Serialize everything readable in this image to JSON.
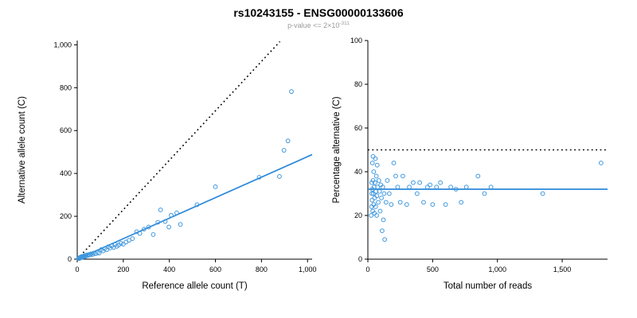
{
  "header": {
    "title": "rs10243155 - ENSG00000133606",
    "subtitle_main": "p-value <= 2×10",
    "subtitle_exponent": "-311"
  },
  "chart_data": [
    {
      "type": "scatter",
      "name": "alternative-vs-reference-count",
      "xlabel": "Reference allele count (T)",
      "ylabel": "Alternative allele count (C)",
      "xlim": [
        0,
        1020
      ],
      "ylim": [
        0,
        1020
      ],
      "grid": false,
      "xticks": {
        "values": [
          0,
          200,
          400,
          600,
          800,
          1000
        ],
        "labels": [
          "0",
          "200",
          "400",
          "600",
          "800",
          "1,000"
        ]
      },
      "yticks": {
        "values": [
          0,
          200,
          400,
          600,
          800,
          1000
        ],
        "labels": [
          "0",
          "200",
          "400",
          "600",
          "800",
          "1,000"
        ]
      },
      "point_color": "#3f97de",
      "lines": [
        {
          "name": "identity-line",
          "style": "dotted",
          "color": "#000000",
          "x": [
            0,
            880
          ],
          "y": [
            0,
            1015
          ]
        },
        {
          "name": "regression-line",
          "style": "solid",
          "color": "#2b87d8",
          "x": [
            0,
            1020
          ],
          "y": [
            0,
            488
          ]
        }
      ],
      "points": [
        [
          6,
          3
        ],
        [
          9,
          6
        ],
        [
          11,
          4
        ],
        [
          13,
          9
        ],
        [
          16,
          7
        ],
        [
          19,
          12
        ],
        [
          22,
          9
        ],
        [
          25,
          14
        ],
        [
          28,
          11
        ],
        [
          32,
          16
        ],
        [
          36,
          13
        ],
        [
          40,
          20
        ],
        [
          45,
          17
        ],
        [
          50,
          22
        ],
        [
          55,
          19
        ],
        [
          60,
          25
        ],
        [
          66,
          22
        ],
        [
          72,
          28
        ],
        [
          80,
          25
        ],
        [
          88,
          31
        ],
        [
          95,
          28
        ],
        [
          105,
          45
        ],
        [
          112,
          38
        ],
        [
          120,
          50
        ],
        [
          128,
          44
        ],
        [
          135,
          58
        ],
        [
          142,
          52
        ],
        [
          150,
          62
        ],
        [
          158,
          55
        ],
        [
          165,
          68
        ],
        [
          172,
          60
        ],
        [
          180,
          66
        ],
        [
          190,
          74
        ],
        [
          200,
          70
        ],
        [
          212,
          80
        ],
        [
          225,
          88
        ],
        [
          240,
          96
        ],
        [
          258,
          128
        ],
        [
          272,
          120
        ],
        [
          290,
          140
        ],
        [
          310,
          150
        ],
        [
          330,
          115
        ],
        [
          350,
          172
        ],
        [
          362,
          230
        ],
        [
          382,
          176
        ],
        [
          398,
          150
        ],
        [
          408,
          205
        ],
        [
          432,
          216
        ],
        [
          448,
          162
        ],
        [
          520,
          254
        ],
        [
          600,
          338
        ],
        [
          790,
          382
        ],
        [
          878,
          386
        ],
        [
          898,
          508
        ],
        [
          915,
          552
        ],
        [
          930,
          782
        ]
      ]
    },
    {
      "type": "scatter",
      "name": "percentage-vs-total-reads",
      "xlabel": "Total number of reads",
      "ylabel": "Percentage alternative (C)",
      "xlim": [
        0,
        1850
      ],
      "ylim": [
        0,
        100
      ],
      "grid": false,
      "xticks": {
        "values": [
          0,
          500,
          1000,
          1500
        ],
        "labels": [
          "0",
          "500",
          "1,000",
          "1,500"
        ]
      },
      "yticks": {
        "values": [
          0,
          20,
          40,
          60,
          80,
          100
        ],
        "labels": [
          "0",
          "20",
          "40",
          "60",
          "80",
          "100"
        ]
      },
      "point_color": "#3f97de",
      "lines": [
        {
          "name": "fifty-percent-line",
          "style": "dotted",
          "color": "#000000",
          "x": [
            0,
            1850
          ],
          "y": [
            50,
            50
          ]
        },
        {
          "name": "mean-percentage-line",
          "style": "solid",
          "color": "#2b87d8",
          "x": [
            0,
            1850
          ],
          "y": [
            32,
            32
          ]
        }
      ],
      "points": [
        [
          25,
          20
        ],
        [
          28,
          24
        ],
        [
          30,
          30
        ],
        [
          30,
          35
        ],
        [
          32,
          27
        ],
        [
          35,
          32
        ],
        [
          35,
          44
        ],
        [
          38,
          22
        ],
        [
          40,
          36
        ],
        [
          40,
          47
        ],
        [
          42,
          30
        ],
        [
          45,
          25
        ],
        [
          45,
          40
        ],
        [
          48,
          33
        ],
        [
          50,
          21
        ],
        [
          52,
          28
        ],
        [
          55,
          35
        ],
        [
          58,
          46
        ],
        [
          60,
          24
        ],
        [
          62,
          31
        ],
        [
          65,
          38
        ],
        [
          68,
          20
        ],
        [
          70,
          29
        ],
        [
          72,
          43
        ],
        [
          75,
          33
        ],
        [
          80,
          26
        ],
        [
          85,
          36
        ],
        [
          90,
          31
        ],
        [
          95,
          22
        ],
        [
          100,
          34
        ],
        [
          105,
          28
        ],
        [
          110,
          13
        ],
        [
          115,
          33
        ],
        [
          120,
          18
        ],
        [
          125,
          30
        ],
        [
          130,
          9
        ],
        [
          140,
          26
        ],
        [
          150,
          36
        ],
        [
          165,
          30
        ],
        [
          180,
          25
        ],
        [
          200,
          44
        ],
        [
          215,
          38
        ],
        [
          230,
          33
        ],
        [
          250,
          26
        ],
        [
          270,
          38
        ],
        [
          300,
          25
        ],
        [
          320,
          33
        ],
        [
          350,
          35
        ],
        [
          380,
          30
        ],
        [
          400,
          35
        ],
        [
          430,
          26
        ],
        [
          460,
          33
        ],
        [
          480,
          34
        ],
        [
          500,
          25
        ],
        [
          530,
          33
        ],
        [
          560,
          35
        ],
        [
          600,
          25
        ],
        [
          640,
          33
        ],
        [
          680,
          32
        ],
        [
          720,
          26
        ],
        [
          760,
          33
        ],
        [
          850,
          38
        ],
        [
          900,
          30
        ],
        [
          950,
          33
        ],
        [
          1350,
          30
        ],
        [
          1800,
          44
        ]
      ]
    }
  ]
}
